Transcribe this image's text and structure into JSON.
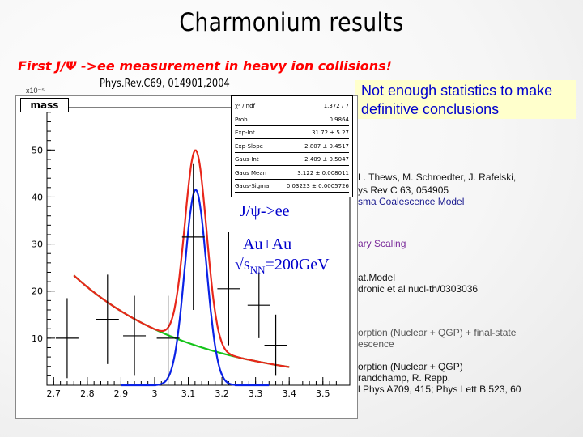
{
  "title": "Charmonium results",
  "subtitle": "First J/Ψ ->ee measurement in heavy ion collisions!",
  "reference": "Phys.Rev.C69, 014901,2004",
  "note": "Not enough statistics to make definitive conclusions",
  "plot": {
    "histogram_label": "mass",
    "scale_label": "x10⁻⁵",
    "annotation_channel": "J/ψ->ee",
    "annotation_system": "Au+Au",
    "annotation_energy_prefix": "√s",
    "annotation_energy_sub": "NN",
    "annotation_energy_value": "=200GeV"
  },
  "stats_box": [
    {
      "key": "χ² / ndf",
      "value": "1.372 / 7"
    },
    {
      "key": "Prob",
      "value": "0.9864"
    },
    {
      "key": "Exp-Int",
      "value": "31.72 ± 5.27"
    },
    {
      "key": "Exp-Slope",
      "value": "2.807 ± 0.4517"
    },
    {
      "key": "Gaus-Int",
      "value": "2.409 ± 0.5047"
    },
    {
      "key": "Gaus Mean",
      "value": "3.122 ± 0.008011"
    },
    {
      "key": "Gaus-Sigma",
      "value": "0.03223 ± 0.0005726"
    }
  ],
  "legend_right": [
    {
      "text": "L. Thews, M. Schroedter, J. Rafelski,",
      "color": "#111111"
    },
    {
      "text": "ys Rev C 63, 054905",
      "color": "#111111"
    },
    {
      "text": "sma Coalescence Model",
      "color": "#1a1a8f"
    },
    {
      "text": "ary Scaling",
      "color": "#7a2a9a"
    },
    {
      "text": "at.Model",
      "color": "#111111"
    },
    {
      "text": "dronic et al nucl-th/0303036",
      "color": "#111111"
    },
    {
      "text": "orption (Nuclear + QGP) + final-state",
      "color": "#555555"
    },
    {
      "text": "escence",
      "color": "#555555"
    },
    {
      "text": "orption (Nuclear + QGP)",
      "color": "#111111"
    },
    {
      "text": "randchamp, R. Rapp,",
      "color": "#111111"
    },
    {
      "text": "l Phys A709, 415; Phys Lett B 523, 60",
      "color": "#111111"
    }
  ],
  "chart_data": {
    "type": "scatter",
    "title": "mass",
    "xlabel": "",
    "ylabel": "",
    "xlim": [
      2.68,
      3.58
    ],
    "ylim": [
      0,
      59
    ],
    "x_ticks": [
      "2.7",
      "2.8",
      "2.9",
      "3",
      "3.1",
      "3.2",
      "3.3",
      "3.4",
      "3.5"
    ],
    "y_ticks": [
      "10",
      "20",
      "30",
      "40",
      "50"
    ],
    "data_points": [
      {
        "x": 2.74,
        "y": 10.0,
        "err": 8.5
      },
      {
        "x": 2.86,
        "y": 14.0,
        "err": 9.5
      },
      {
        "x": 2.94,
        "y": 10.5,
        "err": 8.5
      },
      {
        "x": 3.04,
        "y": 10.0,
        "err": 9.0
      },
      {
        "x": 3.115,
        "y": 31.5,
        "err": 15.5
      },
      {
        "x": 3.22,
        "y": 20.5,
        "err": 12.0
      },
      {
        "x": 3.31,
        "y": 17.0,
        "err": 7.0
      },
      {
        "x": 3.36,
        "y": 8.5,
        "err": 6.5
      }
    ],
    "fit_total_color": "#e8271b",
    "fit_exponential_color": "#15c41a",
    "fit_gaussian_color": "#0a22e6",
    "exp_amplitude": 24.0,
    "exp_slope": 2.807,
    "gaus_peak": 41.5,
    "gaus_mean": 3.122,
    "gaus_sigma": 0.03223,
    "exp_ref_x": 2.75
  }
}
